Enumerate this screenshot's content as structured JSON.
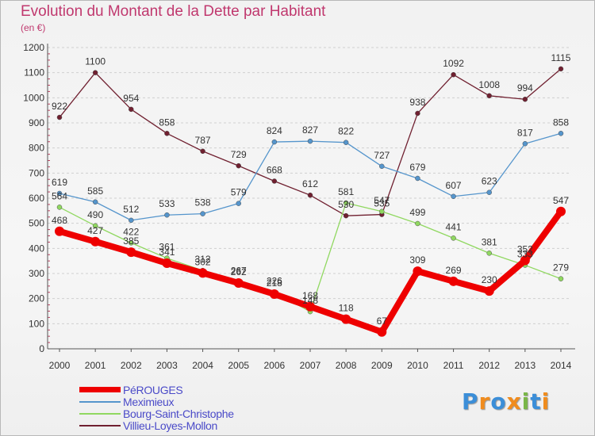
{
  "chart_data": {
    "type": "line",
    "title": "Evolution du Montant de la Dette par Habitant",
    "subtitle": "(en €)",
    "categories": [
      "2000",
      "2001",
      "2002",
      "2003",
      "2004",
      "2005",
      "2006",
      "2007",
      "2008",
      "2009",
      "2010",
      "2011",
      "2012",
      "2013",
      "2014"
    ],
    "ylim": [
      0,
      1200
    ],
    "yticks": [
      0,
      100,
      200,
      300,
      400,
      500,
      600,
      700,
      800,
      900,
      1000,
      1100,
      1200
    ],
    "grid": "horizontal dashed",
    "legend_position": "bottom-left",
    "series": [
      {
        "name": "PéROUGES",
        "color": "#ee0000",
        "values": [
          468,
          427,
          385,
          341,
          302,
          262,
          218,
          168,
          118,
          67,
          309,
          269,
          230,
          352,
          547
        ]
      },
      {
        "name": "Meximieux",
        "color": "#5595cc",
        "values": [
          619,
          585,
          512,
          533,
          538,
          579,
          824,
          827,
          822,
          727,
          679,
          607,
          623,
          817,
          858
        ]
      },
      {
        "name": "Bourg-Saint-Christophe",
        "color": "#90d860",
        "values": [
          564,
          490,
          422,
          361,
          312,
          267,
          226,
          148,
          581,
          547,
          499,
          441,
          381,
          333,
          279
        ]
      },
      {
        "name": "Villieu-Loyes-Mollon",
        "color": "#702030",
        "values": [
          922,
          1100,
          954,
          858,
          787,
          729,
          668,
          612,
          530,
          535,
          938,
          1092,
          1008,
          994,
          1115
        ]
      }
    ]
  },
  "logo": {
    "letters": [
      "P",
      "r",
      "o",
      "x",
      "i",
      "t",
      "i"
    ],
    "colors": [
      "#3b8ed8",
      "#f08c1e",
      "#3b8ed8",
      "#f08c1e",
      "#7ab648",
      "#3b8ed8",
      "#f08c1e"
    ]
  }
}
